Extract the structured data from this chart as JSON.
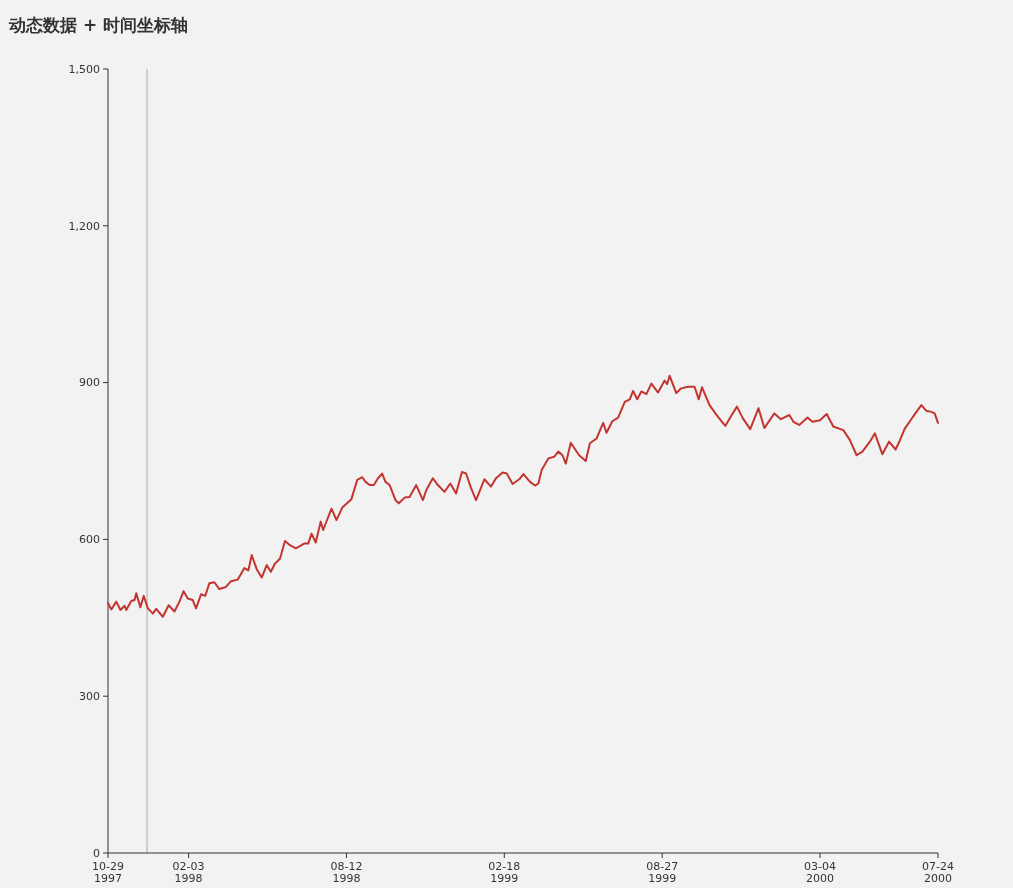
{
  "chart_data": {
    "type": "line",
    "title": "动态数据 + 时间坐标轴",
    "x": [
      "1997-10-29",
      "1997-11-02",
      "1997-11-08",
      "1997-11-13",
      "1997-11-18",
      "1997-11-20",
      "1997-11-26",
      "1997-11-30",
      "1997-12-02",
      "1997-12-07",
      "1997-12-11",
      "1997-12-16",
      "1997-12-22",
      "1997-12-26",
      "1998-01-03",
      "1998-01-10",
      "1998-01-17",
      "1998-01-23",
      "1998-01-28",
      "1998-02-02",
      "1998-02-08",
      "1998-02-12",
      "1998-02-18",
      "1998-02-23",
      "1998-02-28",
      "1998-03-06",
      "1998-03-12",
      "1998-03-20",
      "1998-03-26",
      "1998-04-03",
      "1998-04-11",
      "1998-04-16",
      "1998-04-20",
      "1998-04-26",
      "1998-05-02",
      "1998-05-08",
      "1998-05-13",
      "1998-05-18",
      "1998-05-24",
      "1998-05-30",
      "1998-06-05",
      "1998-06-12",
      "1998-06-17",
      "1998-06-22",
      "1998-06-27",
      "1998-07-01",
      "1998-07-06",
      "1998-07-12",
      "1998-07-15",
      "1998-07-25",
      "1998-07-31",
      "1998-08-07",
      "1998-08-18",
      "1998-08-25",
      "1998-08-31",
      "1998-09-04",
      "1998-09-09",
      "1998-09-14",
      "1998-09-19",
      "1998-09-24",
      "1998-09-28",
      "1998-10-03",
      "1998-10-10",
      "1998-10-14",
      "1998-10-21",
      "1998-10-27",
      "1998-11-04",
      "1998-11-12",
      "1998-11-16",
      "1998-11-24",
      "1998-11-30",
      "1998-12-08",
      "1998-12-15",
      "1998-12-22",
      "1998-12-29",
      "1999-01-03",
      "1999-01-09",
      "1999-01-15",
      "1999-01-25",
      "1999-02-02",
      "1999-02-08",
      "1999-02-16",
      "1999-02-21",
      "1999-02-28",
      "1999-03-08",
      "1999-03-13",
      "1999-03-21",
      "1999-03-27",
      "1999-03-31",
      "1999-04-04",
      "1999-04-12",
      "1999-04-19",
      "1999-04-24",
      "1999-04-29",
      "1999-05-03",
      "1999-05-09",
      "1999-05-19",
      "1999-05-27",
      "1999-06-01",
      "1999-06-09",
      "1999-06-17",
      "1999-06-21",
      "1999-06-28",
      "1999-07-05",
      "1999-07-13",
      "1999-07-19",
      "1999-07-23",
      "1999-07-28",
      "1999-08-02",
      "1999-08-08",
      "1999-08-14",
      "1999-08-22",
      "1999-08-30",
      "1999-09-02",
      "1999-09-05",
      "1999-09-13",
      "1999-09-19",
      "1999-09-27",
      "1999-10-05",
      "1999-10-10",
      "1999-10-14",
      "1999-10-23",
      "1999-11-02",
      "1999-11-11",
      "1999-11-18",
      "1999-11-25",
      "1999-12-02",
      "1999-12-11",
      "1999-12-21",
      "1999-12-28",
      "2000-01-09",
      "2000-01-17",
      "2000-01-27",
      "2000-02-01",
      "2000-02-08",
      "2000-02-18",
      "2000-02-24",
      "2000-03-04",
      "2000-03-12",
      "2000-03-20",
      "2000-04-01",
      "2000-04-09",
      "2000-04-17",
      "2000-04-24",
      "2000-05-03",
      "2000-05-09",
      "2000-05-18",
      "2000-05-26",
      "2000-06-03",
      "2000-06-08",
      "2000-06-14",
      "2000-06-21",
      "2000-06-28",
      "2000-07-04",
      "2000-07-10",
      "2000-07-16",
      "2000-07-20",
      "2000-07-24"
    ],
    "series": [
      {
        "color": "#c23531",
        "values": [
          478,
          466,
          481,
          465,
          473,
          465,
          482,
          484,
          497,
          470,
          492,
          468,
          458,
          467,
          452,
          474,
          462,
          481,
          501,
          487,
          484,
          468,
          495,
          492,
          516,
          518,
          505,
          509,
          520,
          523,
          545,
          541,
          570,
          543,
          527,
          551,
          538,
          554,
          563,
          597,
          589,
          583,
          587,
          592,
          592,
          611,
          594,
          634,
          618,
          659,
          637,
          661,
          677,
          714,
          719,
          710,
          704,
          704,
          717,
          726,
          710,
          704,
          675,
          669,
          680,
          681,
          704,
          675,
          694,
          717,
          704,
          691,
          707,
          688,
          729,
          726,
          698,
          675,
          715,
          701,
          717,
          728,
          726,
          706,
          715,
          725,
          710,
          703,
          707,
          733,
          755,
          758,
          768,
          761,
          745,
          785,
          761,
          750,
          784,
          793,
          823,
          804,
          826,
          833,
          863,
          868,
          884,
          868,
          883,
          878,
          898,
          881,
          904,
          897,
          913,
          880,
          889,
          892,
          892,
          868,
          891,
          857,
          835,
          817,
          836,
          854,
          832,
          811,
          851,
          813,
          841,
          830,
          838,
          825,
          819,
          833,
          825,
          828,
          840,
          816,
          809,
          790,
          761,
          768,
          787,
          803,
          763,
          787,
          772,
          789,
          812,
          828,
          844,
          857,
          846,
          844,
          841,
          823
        ]
      }
    ],
    "xlim": [
      "1997-10-29",
      "2000-07-24"
    ],
    "xticks": [
      {
        "value": "1997-10-29",
        "label": "10-29\n1997"
      },
      {
        "value": "1998-02-03",
        "label": "02-03\n1998"
      },
      {
        "value": "1998-08-12",
        "label": "08-12\n1998"
      },
      {
        "value": "1999-02-18",
        "label": "02-18\n1999"
      },
      {
        "value": "1999-08-27",
        "label": "08-27\n1999"
      },
      {
        "value": "2000-03-04",
        "label": "03-04\n2000"
      },
      {
        "value": "2000-07-24",
        "label": "07-24\n2000"
      }
    ],
    "ylim": [
      0,
      1500
    ],
    "yticks": [
      0,
      300,
      600,
      900,
      {
        "value": 1200,
        "label": "1,200"
      },
      {
        "value": 1500,
        "label": "1,500"
      }
    ],
    "ref_lines": [
      {
        "axis": "x",
        "value": "1997-12-15",
        "color": "#aaaaaa"
      }
    ],
    "marker": "none",
    "line_style": "solid"
  }
}
